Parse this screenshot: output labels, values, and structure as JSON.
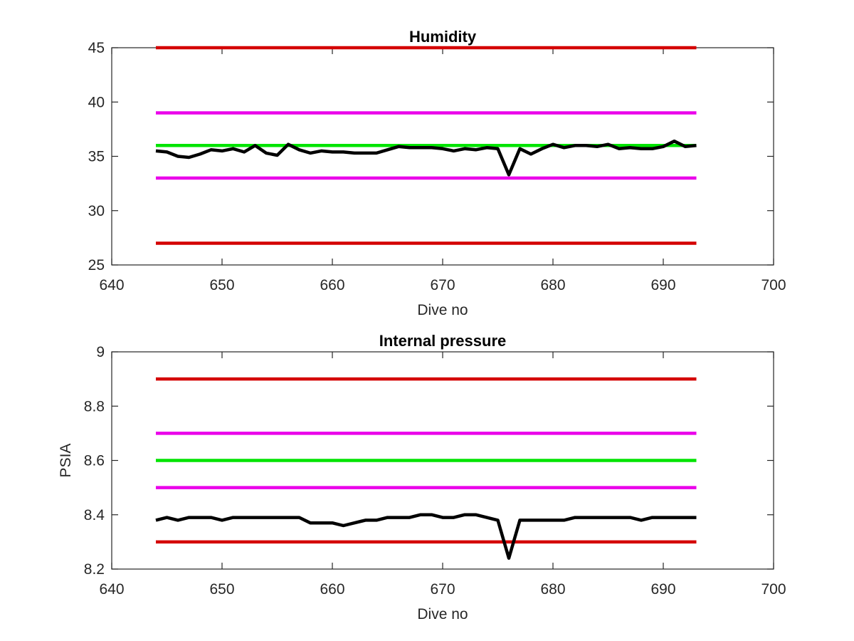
{
  "chart_data": [
    {
      "type": "line",
      "title": "Humidity",
      "xlabel": "Dive no",
      "ylabel": "",
      "xlim": [
        640,
        700
      ],
      "ylim": [
        25,
        45
      ],
      "x_ticks": [
        "640",
        "650",
        "660",
        "670",
        "680",
        "690",
        "700"
      ],
      "y_ticks": [
        "25",
        "30",
        "35",
        "40",
        "45"
      ],
      "grid": false,
      "threshold_lines": [
        {
          "y": 45,
          "x_range": [
            644,
            693
          ],
          "color": "#d40000"
        },
        {
          "y": 39,
          "x_range": [
            644,
            693
          ],
          "color": "#ea00ea"
        },
        {
          "y": 36,
          "x_range": [
            644,
            693
          ],
          "color": "#00e400"
        },
        {
          "y": 33,
          "x_range": [
            644,
            693
          ],
          "color": "#ea00ea"
        },
        {
          "y": 27,
          "x_range": [
            644,
            693
          ],
          "color": "#d40000"
        }
      ],
      "series": [
        {
          "color": "#000000",
          "x": [
            644,
            645,
            646,
            647,
            648,
            649,
            650,
            651,
            652,
            653,
            654,
            655,
            656,
            657,
            658,
            659,
            660,
            661,
            662,
            663,
            664,
            665,
            666,
            667,
            668,
            669,
            670,
            671,
            672,
            673,
            674,
            675,
            676,
            677,
            678,
            679,
            680,
            681,
            682,
            683,
            684,
            685,
            686,
            687,
            688,
            689,
            690,
            691,
            692,
            693
          ],
          "y": [
            35.5,
            35.4,
            35.0,
            34.9,
            35.2,
            35.6,
            35.5,
            35.7,
            35.4,
            36.0,
            35.3,
            35.1,
            36.1,
            35.6,
            35.3,
            35.5,
            35.4,
            35.4,
            35.3,
            35.3,
            35.3,
            35.6,
            35.9,
            35.8,
            35.8,
            35.8,
            35.7,
            35.5,
            35.7,
            35.6,
            35.8,
            35.7,
            33.3,
            35.7,
            35.2,
            35.7,
            36.1,
            35.8,
            36.0,
            36.0,
            35.9,
            36.1,
            35.7,
            35.8,
            35.7,
            35.7,
            35.9,
            36.4,
            35.9,
            36.0
          ]
        }
      ]
    },
    {
      "type": "line",
      "title": "Internal pressure",
      "xlabel": "Dive no",
      "ylabel": "PSIA",
      "xlim": [
        640,
        700
      ],
      "ylim": [
        8.2,
        9.0
      ],
      "x_ticks": [
        "640",
        "650",
        "660",
        "670",
        "680",
        "690",
        "700"
      ],
      "y_ticks": [
        "8.2",
        "8.4",
        "8.6",
        "8.8",
        "9"
      ],
      "grid": false,
      "threshold_lines": [
        {
          "y": 8.9,
          "x_range": [
            644,
            693
          ],
          "color": "#d40000"
        },
        {
          "y": 8.7,
          "x_range": [
            644,
            693
          ],
          "color": "#ea00ea"
        },
        {
          "y": 8.6,
          "x_range": [
            644,
            693
          ],
          "color": "#00e400"
        },
        {
          "y": 8.5,
          "x_range": [
            644,
            693
          ],
          "color": "#ea00ea"
        },
        {
          "y": 8.3,
          "x_range": [
            644,
            693
          ],
          "color": "#d40000"
        }
      ],
      "series": [
        {
          "color": "#000000",
          "x": [
            644,
            645,
            646,
            647,
            648,
            649,
            650,
            651,
            652,
            653,
            654,
            655,
            656,
            657,
            658,
            659,
            660,
            661,
            662,
            663,
            664,
            665,
            666,
            667,
            668,
            669,
            670,
            671,
            672,
            673,
            674,
            675,
            676,
            677,
            678,
            679,
            680,
            681,
            682,
            683,
            684,
            685,
            686,
            687,
            688,
            689,
            690,
            691,
            692,
            693
          ],
          "y": [
            8.38,
            8.39,
            8.38,
            8.39,
            8.39,
            8.39,
            8.38,
            8.39,
            8.39,
            8.39,
            8.39,
            8.39,
            8.39,
            8.39,
            8.37,
            8.37,
            8.37,
            8.36,
            8.37,
            8.38,
            8.38,
            8.39,
            8.39,
            8.39,
            8.4,
            8.4,
            8.39,
            8.39,
            8.4,
            8.4,
            8.39,
            8.38,
            8.24,
            8.38,
            8.38,
            8.38,
            8.38,
            8.38,
            8.39,
            8.39,
            8.39,
            8.39,
            8.39,
            8.39,
            8.38,
            8.39,
            8.39,
            8.39,
            8.39,
            8.39
          ]
        }
      ]
    }
  ]
}
